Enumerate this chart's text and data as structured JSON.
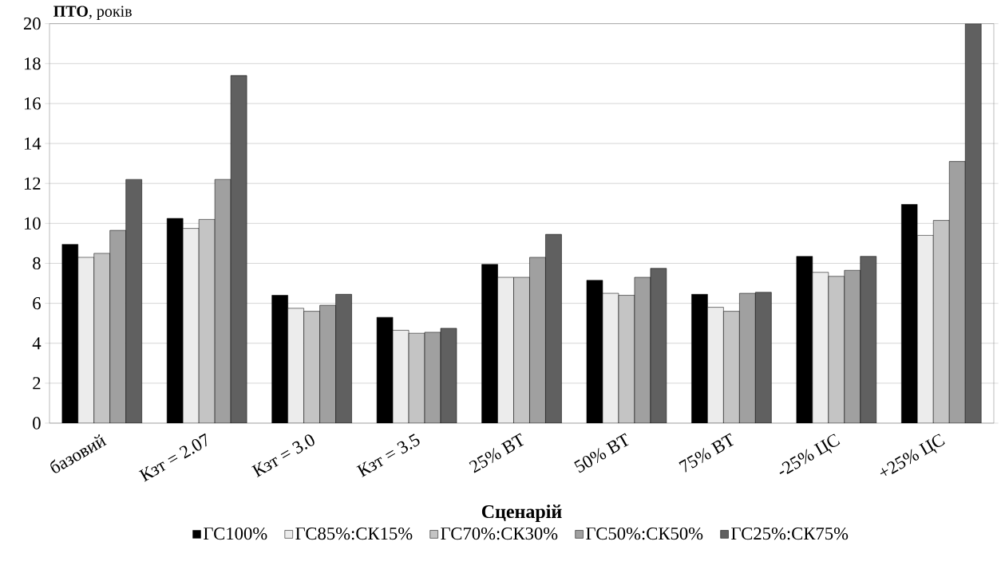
{
  "chart_data": {
    "type": "bar",
    "ylabel": "**ПТО**, років",
    "xlabel": "Сценарій",
    "categories": [
      "базовий",
      "Кзт = 2.07",
      "Кзт = 3.0",
      "Кзт = 3.5",
      "25% ВТ",
      "50% ВТ",
      "75% ВТ",
      "-25% ЦС",
      "+25% ЦС"
    ],
    "series": [
      {
        "name": "ГС100%",
        "color": "#000000",
        "values": [
          8.95,
          10.25,
          6.4,
          5.3,
          7.95,
          7.15,
          6.45,
          8.35,
          10.95
        ]
      },
      {
        "name": "ГС85%:СК15%",
        "color": "#ececec",
        "values": [
          8.3,
          9.75,
          5.75,
          4.65,
          7.3,
          6.5,
          5.8,
          7.55,
          9.4
        ]
      },
      {
        "name": "ГС70%:СК30%",
        "color": "#c4c4c4",
        "values": [
          8.5,
          10.2,
          5.6,
          4.5,
          7.3,
          6.4,
          5.6,
          7.35,
          10.15
        ]
      },
      {
        "name": "ГС50%:СК50%",
        "color": "#a0a0a0",
        "values": [
          9.65,
          12.2,
          5.9,
          4.55,
          8.3,
          7.3,
          6.5,
          7.65,
          13.1
        ]
      },
      {
        "name": "ГС25%:СК75%",
        "color": "#606060",
        "values": [
          12.2,
          17.4,
          6.45,
          4.75,
          9.45,
          7.75,
          6.55,
          8.35,
          20
        ]
      }
    ],
    "ylim": [
      0,
      20
    ],
    "yticks": [
      0,
      2,
      4,
      6,
      8,
      10,
      12,
      14,
      16,
      18,
      20
    ],
    "grid": "y",
    "legend": "bottom"
  }
}
